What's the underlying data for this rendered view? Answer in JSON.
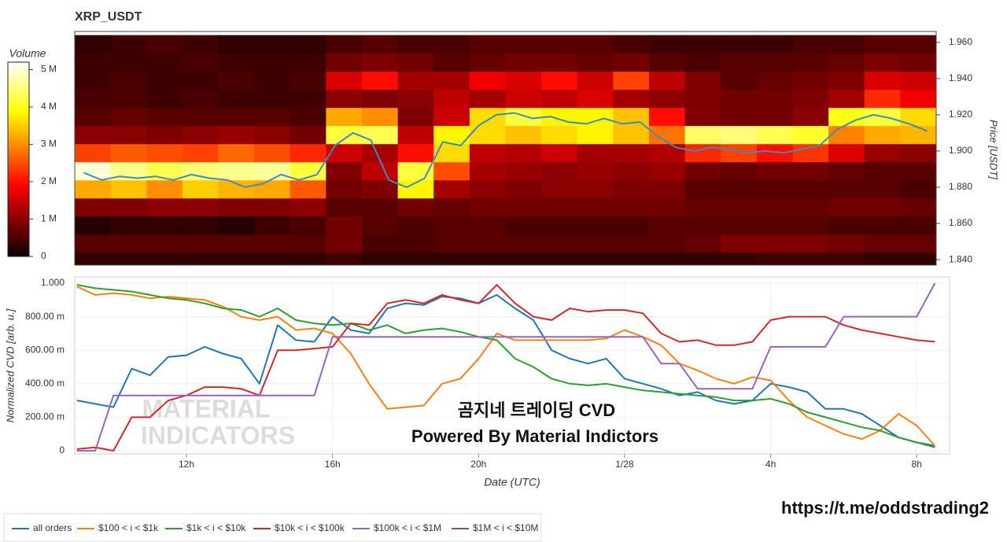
{
  "chart_data": [
    {
      "type": "heatmap",
      "title": "XRP_USDT",
      "ylabel": "Price [USDT]",
      "colorbar_label": "Volume",
      "colorscale": "hot",
      "ylim": [
        1.837,
        1.966
      ],
      "yticks": [
        {
          "value": 1.84,
          "label": "1.840"
        },
        {
          "value": 1.86,
          "label": "1.860"
        },
        {
          "value": 1.88,
          "label": "1.880"
        },
        {
          "value": 1.9,
          "label": "1.900"
        },
        {
          "value": 1.92,
          "label": "1.920"
        },
        {
          "value": 1.94,
          "label": "1.940"
        },
        {
          "value": 1.96,
          "label": "1.960"
        }
      ],
      "zlim": [
        0,
        5.2
      ],
      "zticks": [
        0,
        {
          "value": 1,
          "label": "1 M"
        },
        {
          "value": 2,
          "label": "2 M"
        },
        {
          "value": 3,
          "label": "3 M"
        },
        {
          "value": 4,
          "label": "4 M"
        },
        {
          "value": 5,
          "label": "5 M"
        }
      ],
      "y": [
        1.839,
        1.849,
        1.859,
        1.869,
        1.879,
        1.889,
        1.899,
        1.909,
        1.919,
        1.929,
        1.939,
        1.949,
        1.959
      ],
      "z": [
        [
          0.3,
          0.3,
          0.3,
          0.3,
          0.3,
          0.3,
          0.3,
          0.4,
          0.3,
          0.3,
          0.3,
          0.3,
          0.3,
          0.3,
          0.3,
          0.3,
          0.3,
          0.3,
          0.3,
          0.4,
          0.4,
          0.4,
          0.3,
          0.3
        ],
        [
          0.6,
          0.6,
          0.6,
          0.6,
          0.6,
          0.6,
          0.6,
          0.8,
          0.5,
          0.5,
          0.6,
          0.6,
          0.6,
          0.6,
          0.6,
          0.6,
          0.6,
          0.7,
          0.9,
          0.9,
          0.9,
          0.8,
          0.7,
          0.7
        ],
        [
          0.2,
          0.3,
          0.3,
          0.3,
          0.2,
          0.4,
          0.5,
          0.8,
          0.6,
          0.5,
          0.6,
          0.6,
          0.5,
          0.5,
          0.5,
          0.5,
          0.6,
          0.6,
          0.6,
          0.6,
          0.6,
          0.5,
          0.5,
          0.5
        ],
        [
          0.9,
          0.9,
          1.0,
          1.0,
          0.9,
          0.9,
          1.0,
          0.6,
          0.6,
          0.8,
          0.7,
          0.8,
          0.8,
          0.8,
          0.8,
          0.8,
          0.8,
          0.7,
          0.7,
          0.7,
          0.7,
          0.8,
          0.8,
          0.7
        ],
        [
          3.2,
          3.4,
          3.0,
          3.5,
          3.3,
          3.2,
          2.6,
          0.8,
          0.9,
          3.8,
          1.2,
          1.0,
          0.9,
          1.0,
          1.0,
          0.9,
          0.9,
          0.6,
          0.6,
          0.6,
          0.6,
          0.6,
          0.6,
          0.5
        ],
        [
          5.0,
          4.6,
          4.3,
          4.5,
          4.6,
          4.7,
          4.2,
          0.9,
          1.4,
          4.2,
          2.5,
          1.2,
          1.1,
          1.0,
          1.1,
          1.0,
          1.1,
          0.8,
          0.7,
          0.8,
          0.8,
          0.7,
          0.6,
          0.6
        ],
        [
          2.4,
          2.6,
          2.5,
          2.4,
          2.7,
          2.5,
          2.2,
          1.5,
          1.2,
          2.0,
          3.6,
          1.4,
          1.3,
          1.5,
          1.2,
          1.2,
          1.3,
          2.2,
          2.4,
          2.0,
          2.3,
          1.6,
          1.1,
          1.0
        ],
        [
          1.0,
          1.0,
          0.9,
          1.0,
          1.1,
          1.0,
          0.8,
          4.2,
          4.3,
          1.4,
          3.8,
          3.6,
          3.4,
          3.6,
          3.8,
          3.4,
          2.8,
          4.4,
          4.5,
          4.3,
          4.1,
          2.9,
          3.2,
          3.3
        ],
        [
          0.6,
          0.7,
          0.6,
          0.6,
          0.6,
          0.6,
          0.5,
          3.2,
          3.0,
          0.9,
          1.5,
          3.6,
          4.2,
          3.8,
          3.8,
          3.4,
          2.0,
          0.9,
          0.8,
          0.8,
          1.0,
          4.0,
          4.2,
          3.6
        ],
        [
          0.5,
          0.5,
          0.4,
          0.5,
          0.4,
          0.4,
          0.4,
          1.0,
          0.9,
          1.0,
          1.4,
          1.2,
          1.5,
          1.4,
          1.6,
          1.2,
          1.0,
          0.9,
          0.8,
          0.8,
          0.9,
          1.2,
          2.2,
          1.8
        ],
        [
          0.4,
          0.5,
          0.4,
          0.4,
          0.5,
          0.4,
          0.5,
          1.6,
          2.0,
          1.2,
          1.2,
          1.8,
          1.6,
          2.0,
          1.5,
          2.4,
          1.4,
          0.9,
          0.6,
          0.7,
          0.8,
          0.9,
          1.6,
          1.5
        ],
        [
          0.4,
          0.4,
          0.4,
          0.5,
          0.4,
          0.4,
          0.4,
          0.8,
          0.9,
          0.8,
          0.6,
          0.7,
          0.8,
          0.8,
          0.7,
          0.8,
          0.6,
          0.5,
          0.6,
          0.6,
          0.6,
          0.7,
          0.9,
          0.8
        ],
        [
          0.3,
          0.4,
          0.5,
          0.4,
          0.3,
          0.3,
          0.3,
          0.5,
          0.6,
          0.5,
          0.5,
          0.6,
          0.6,
          0.6,
          0.6,
          0.5,
          0.4,
          0.4,
          0.4,
          0.4,
          0.5,
          0.5,
          0.6,
          0.6
        ]
      ],
      "price": {
        "color": "#3a8dc4",
        "values": [
          1.888,
          1.884,
          1.886,
          1.885,
          1.886,
          1.884,
          1.887,
          1.885,
          1.884,
          1.88,
          1.882,
          1.887,
          1.884,
          1.887,
          1.903,
          1.91,
          1.906,
          1.884,
          1.88,
          1.885,
          1.905,
          1.903,
          1.914,
          1.92,
          1.921,
          1.918,
          1.919,
          1.916,
          1.915,
          1.918,
          1.915,
          1.916,
          1.908,
          1.902,
          1.9,
          1.902,
          1.901,
          1.899,
          1.9,
          1.899,
          1.901,
          1.903,
          1.912,
          1.917,
          1.92,
          1.918,
          1.915,
          1.911
        ]
      }
    },
    {
      "type": "line",
      "xlabel": "Date (UTC)",
      "ylabel": "Normalized CVD [arb. u.]",
      "grid": true,
      "xlim": [
        8.94,
        32.9
      ],
      "ylim": [
        0,
        1
      ],
      "xticks": [
        {
          "value": 12,
          "label": "12h"
        },
        {
          "value": 16,
          "label": "16h"
        },
        {
          "value": 20,
          "label": "20h"
        },
        {
          "value": 24,
          "label": "1/28"
        },
        {
          "value": 28,
          "label": "4h"
        },
        {
          "value": 32,
          "label": "8h"
        }
      ],
      "yticks": [
        0,
        {
          "value": 0.2,
          "label": "200.00 m"
        },
        {
          "value": 0.4,
          "label": "400.00 m"
        },
        {
          "value": 0.6,
          "label": "600.00 m"
        },
        {
          "value": 0.8,
          "label": "800.00 m"
        },
        {
          "value": 1,
          "label": "1.000"
        }
      ],
      "x": [
        9,
        9.5,
        10,
        10.5,
        11,
        11.5,
        12,
        12.5,
        13,
        13.5,
        14,
        14.5,
        15,
        15.5,
        16,
        16.5,
        17,
        17.5,
        18,
        18.5,
        19,
        19.5,
        20,
        20.5,
        21,
        21.5,
        22,
        22.5,
        23,
        23.5,
        24,
        24.5,
        25,
        25.5,
        26,
        26.5,
        27,
        27.5,
        28,
        28.5,
        29,
        29.5,
        30,
        30.5,
        31,
        31.5,
        32,
        32.5
      ],
      "series": [
        {
          "name": "all orders",
          "color": "#1f77b4",
          "values": [
            0.3,
            0.28,
            0.26,
            0.49,
            0.45,
            0.56,
            0.57,
            0.62,
            0.58,
            0.55,
            0.4,
            0.75,
            0.66,
            0.65,
            0.8,
            0.72,
            0.7,
            0.85,
            0.88,
            0.87,
            0.92,
            0.91,
            0.88,
            0.93,
            0.85,
            0.78,
            0.6,
            0.55,
            0.52,
            0.55,
            0.43,
            0.4,
            0.37,
            0.33,
            0.35,
            0.3,
            0.28,
            0.3,
            0.4,
            0.38,
            0.35,
            0.25,
            0.25,
            0.22,
            0.15,
            0.08,
            0.05,
            0.03
          ]
        },
        {
          "name": "$100 < i < $1k",
          "color": "#ff7f0e",
          "values": [
            0.98,
            0.93,
            0.94,
            0.93,
            0.91,
            0.92,
            0.91,
            0.9,
            0.86,
            0.8,
            0.78,
            0.8,
            0.72,
            0.73,
            0.7,
            0.58,
            0.4,
            0.25,
            0.26,
            0.27,
            0.4,
            0.43,
            0.55,
            0.7,
            0.66,
            0.66,
            0.66,
            0.66,
            0.66,
            0.67,
            0.72,
            0.68,
            0.63,
            0.52,
            0.48,
            0.43,
            0.4,
            0.44,
            0.42,
            0.3,
            0.2,
            0.15,
            0.1,
            0.07,
            0.12,
            0.22,
            0.15,
            0.03
          ]
        },
        {
          "name": "$1k < i < $10k",
          "color": "#2ca02c",
          "values": [
            0.99,
            0.97,
            0.96,
            0.95,
            0.93,
            0.91,
            0.9,
            0.88,
            0.85,
            0.84,
            0.8,
            0.85,
            0.78,
            0.76,
            0.75,
            0.76,
            0.72,
            0.75,
            0.7,
            0.72,
            0.73,
            0.71,
            0.68,
            0.66,
            0.55,
            0.5,
            0.43,
            0.4,
            0.39,
            0.4,
            0.38,
            0.36,
            0.35,
            0.34,
            0.33,
            0.32,
            0.3,
            0.3,
            0.31,
            0.28,
            0.23,
            0.2,
            0.17,
            0.14,
            0.12,
            0.08,
            0.05,
            0.02
          ]
        },
        {
          "name": "$10k < i < $100k",
          "color": "#d62728",
          "values": [
            0.01,
            0.02,
            0.0,
            0.2,
            0.2,
            0.3,
            0.33,
            0.38,
            0.38,
            0.37,
            0.33,
            0.6,
            0.6,
            0.61,
            0.62,
            0.76,
            0.75,
            0.88,
            0.9,
            0.88,
            0.93,
            0.9,
            0.88,
            0.99,
            0.88,
            0.8,
            0.78,
            0.85,
            0.83,
            0.84,
            0.84,
            0.82,
            0.7,
            0.65,
            0.66,
            0.63,
            0.63,
            0.65,
            0.78,
            0.8,
            0.8,
            0.8,
            0.75,
            0.72,
            0.7,
            0.68,
            0.66,
            0.65
          ]
        },
        {
          "name": "$100k < i < $1M",
          "color": "#9467bd",
          "values": [
            0,
            0,
            0.33,
            0.33,
            0.33,
            0.33,
            0.33,
            0.33,
            0.33,
            0.33,
            0.33,
            0.33,
            0.33,
            0.33,
            0.68,
            0.68,
            0.68,
            0.68,
            0.68,
            0.68,
            0.68,
            0.68,
            0.68,
            0.68,
            0.68,
            0.68,
            0.68,
            0.68,
            0.68,
            0.68,
            0.68,
            0.68,
            0.52,
            0.52,
            0.37,
            0.37,
            0.37,
            0.37,
            0.62,
            0.62,
            0.62,
            0.62,
            0.8,
            0.8,
            0.8,
            0.8,
            0.8,
            1.0
          ]
        },
        {
          "name": "$1M < i < $10M",
          "color": "#8c564b"
        }
      ],
      "annotations": [
        "곰지네 트레이딩 CVD",
        "Powered By Material Indictors"
      ],
      "watermark": [
        "MATERIAL",
        "INDICATORS"
      ]
    }
  ],
  "link": "https://t.me/oddstrading2"
}
